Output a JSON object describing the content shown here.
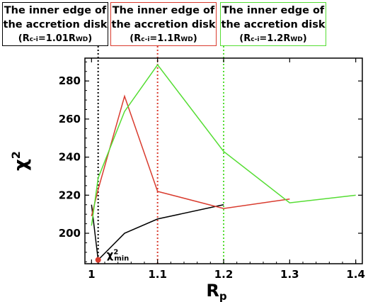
{
  "callouts": [
    {
      "line1": "The inner edge of",
      "line2": "the accretion disk",
      "label": "(Rc-i=1.01RWD)",
      "r_main": "(R",
      "r_sub1": "c-i",
      "r_mid": "=1.01R",
      "r_sub2": "WD",
      "r_end": ")",
      "color": "#000000",
      "x_value": 1.01
    },
    {
      "line1": "The inner edge of",
      "line2": "the accretion disk",
      "label": "(Rc-i=1.1RWD)",
      "r_main": "(R",
      "r_sub1": "c-i",
      "r_mid": "=1.1R",
      "r_sub2": "WD",
      "r_end": ")",
      "color": "#d93b2e",
      "x_value": 1.1
    },
    {
      "line1": "The inner edge of",
      "line2": "the accretion disk",
      "label": "(Rc-i=1.2RWD)",
      "r_main": "(R",
      "r_sub1": "c-i",
      "r_mid": "=1.2R",
      "r_sub2": "WD",
      "r_end": ")",
      "color": "#55dd33",
      "x_value": 1.2
    }
  ],
  "chart_data": {
    "type": "line",
    "xlabel": "Rp",
    "xlabel_main": "R",
    "xlabel_sub": "p",
    "ylabel": "χ2",
    "ylabel_main": "χ",
    "ylabel_sup": "2",
    "xlim": [
      0.99,
      1.41
    ],
    "ylim": [
      184,
      292
    ],
    "x_ticks": [
      1,
      1.1,
      1.2,
      1.3,
      1.4
    ],
    "x_tick_labels": [
      "1",
      "1.1",
      "1.2",
      "1.3",
      "1.4"
    ],
    "y_ticks": [
      200,
      220,
      240,
      260,
      280
    ],
    "y_tick_labels": [
      "200",
      "220",
      "240",
      "260",
      "280"
    ],
    "series": [
      {
        "color": "#000000",
        "x": [
          1.0,
          1.01,
          1.05,
          1.1,
          1.2
        ],
        "y": [
          215,
          186,
          200,
          207.5,
          215
        ]
      },
      {
        "color": "#d93b2e",
        "x": [
          1.0,
          1.01,
          1.05,
          1.1,
          1.2,
          1.3
        ],
        "y": [
          209,
          223,
          272,
          222,
          213,
          218
        ]
      },
      {
        "color": "#55dd33",
        "x": [
          1.0,
          1.01,
          1.05,
          1.1,
          1.2,
          1.3,
          1.4
        ],
        "y": [
          204,
          229,
          264,
          288.5,
          243,
          216,
          220
        ]
      }
    ],
    "min_marker": {
      "x": 1.01,
      "y": 186,
      "color": "#d93b2e",
      "label": "χ2min",
      "label_main": "χ",
      "label_sup": "2",
      "label_sub": "min"
    }
  }
}
